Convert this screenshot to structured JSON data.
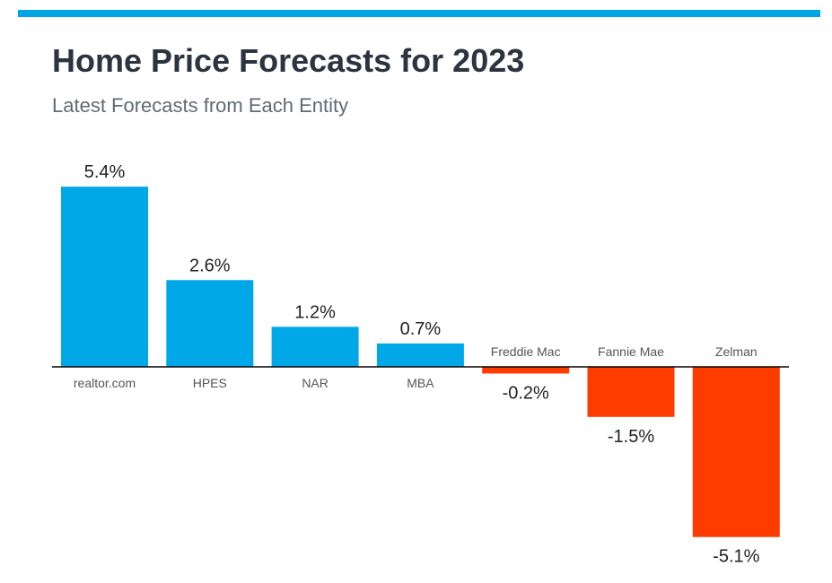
{
  "header": {
    "title": "Home Price Forecasts for 2023",
    "subtitle": "Latest Forecasts from Each Entity"
  },
  "colors": {
    "accent_bar": "#00a5e6",
    "positive": "#00a8e8",
    "negative": "#ff3c00",
    "axis": "#000000"
  },
  "chart_data": {
    "type": "bar",
    "categories": [
      "realtor.com",
      "HPES",
      "NAR",
      "MBA",
      "Freddie Mac",
      "Fannie Mae",
      "Zelman"
    ],
    "values": [
      5.4,
      2.6,
      1.2,
      0.7,
      -0.2,
      -1.5,
      -5.1
    ],
    "data_labels": [
      "5.4%",
      "2.6%",
      "1.2%",
      "0.7%",
      "-0.2%",
      "-1.5%",
      "-5.1%"
    ],
    "unit": "%",
    "ylim": [
      -5.1,
      5.4
    ],
    "grid": false,
    "legend": "none"
  }
}
